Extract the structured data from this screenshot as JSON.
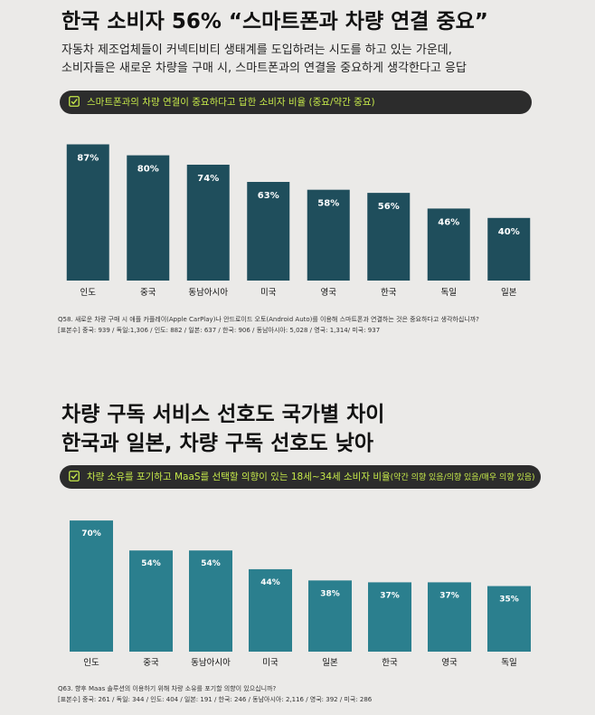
{
  "section1": {
    "title": "한국 소비자 56% “스마트폰과 차량 연결 중요”",
    "subtitle_lines": [
      "자동차 제조업체들이 커넥티비티 생태계를 도입하려는 시도를 하고 있는 가운데,",
      "소비자들은 새로운 차량을 구매 시, 스마트폰과의 연결을 중요하게 생각한다고 응답"
    ],
    "question_pill": "스마트폰과의 차량 연결이 중요하다고 답한 소비자 비율 (중요/약간 중요)",
    "footnote_question": "Q58. 새로운 차량 구매 시 애플 카플레이(Apple CarPlay)나 안드로이드 오토(Android Auto)를 이용해 스마트폰과 연결하는 것은 중요하다고 생각하십니까?",
    "footnote_sample": "[표본수] 중국: 939 / 독일:1,306 / 인도: 882 / 일본: 637 / 한국: 906 / 동남아시아: 5,028 / 영국: 1,314/ 미국: 937",
    "bar_color": "#1f4e5c"
  },
  "section2": {
    "title_lines": [
      "차량 구독 서비스 선호도 국가별 차이",
      "한국과 일본, 차량 구독 선호도 낮아"
    ],
    "question_pill": "차량 소유를 포기하고 MaaS를 선택할 의향이 있는 18세~34세 소비자 비율",
    "question_pill_suffix": "(약간 의향 있음/의향 있음/매우 의향 있음)",
    "footnote_question": "Q63. 향후 Maas 솔루션의 이용하기 위해 차량 소유를 포기할 의향이 있으십니까?",
    "footnote_sample": "[표본수] 중국: 261 / 독일: 344 / 인도: 404 / 일본: 191 / 한국: 246 / 동남아시아: 2,116 / 영국: 392 / 미국: 286",
    "bar_color": "#2b7f8e"
  },
  "accent_color": "#c6e94a",
  "icon": "check-square-icon",
  "chart_data": [
    {
      "type": "bar",
      "categories": [
        "인도",
        "중국",
        "동남아시아",
        "미국",
        "영국",
        "한국",
        "독일",
        "일본"
      ],
      "values": [
        87,
        80,
        74,
        63,
        58,
        56,
        46,
        40
      ],
      "value_labels": [
        "87%",
        "80%",
        "74%",
        "63%",
        "58%",
        "56%",
        "46%",
        "40%"
      ],
      "ylim": [
        0,
        100
      ],
      "grid": false,
      "legend": "none"
    },
    {
      "type": "bar",
      "categories": [
        "인도",
        "중국",
        "동남아시아",
        "미국",
        "일본",
        "한국",
        "영국",
        "독일"
      ],
      "values": [
        70,
        54,
        54,
        44,
        38,
        37,
        37,
        35
      ],
      "value_labels": [
        "70%",
        "54%",
        "54%",
        "44%",
        "38%",
        "37%",
        "37%",
        "35%"
      ],
      "ylim": [
        0,
        100
      ],
      "grid": false,
      "legend": "none"
    }
  ]
}
